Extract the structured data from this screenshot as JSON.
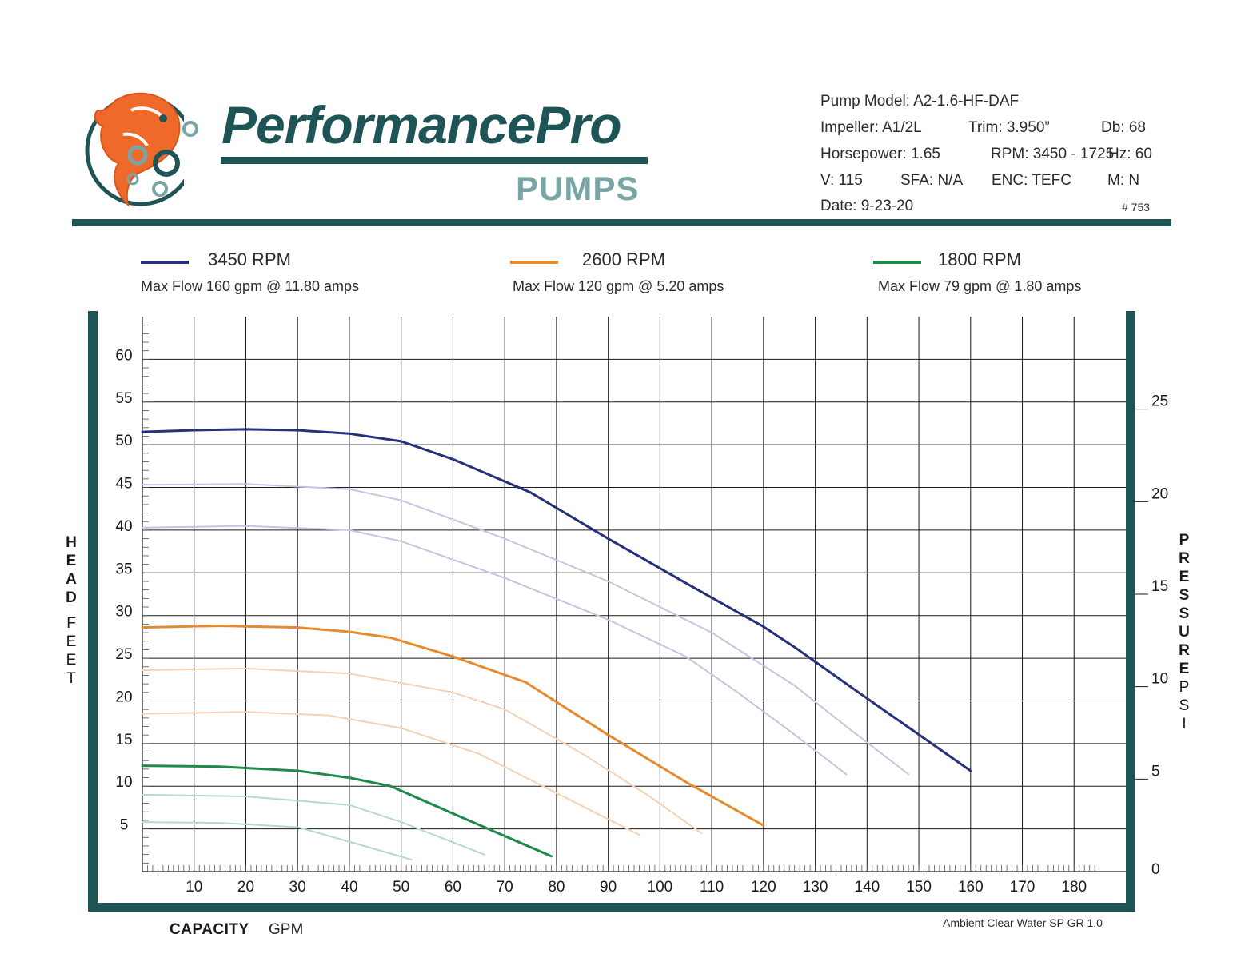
{
  "brand": {
    "name": "PerformancePro",
    "sub": "PUMPS",
    "colors": {
      "teal": "#1f5457",
      "grey_teal": "#7aa5a6",
      "orange": "#ef6a2a"
    }
  },
  "specs": {
    "model": "Pump Model:  A2-1.6-HF-DAF",
    "impeller": "Impeller:   A1/2L",
    "trim": "Trim:  3.950”",
    "db": "Db:  68",
    "horsepower": "Horsepower:   1.65",
    "rpm": "RPM:  3450 - 1725",
    "hz": "Hz: 60",
    "v": "V:   115",
    "sfa": "SFA: N/A",
    "enc": "ENC:  TEFC",
    "m": "M:   N",
    "date": "Date:   9-23-20",
    "number": "# 753"
  },
  "legend": [
    {
      "label": "3450 RPM",
      "note": "Max Flow 160 gpm @ 11.80 amps",
      "color": "#27307a"
    },
    {
      "label": "2600 RPM",
      "note": "Max Flow 120 gpm @ 5.20 amps",
      "color": "#e68a2e"
    },
    {
      "label": "1800 RPM",
      "note": "Max Flow 79 gpm @ 1.80 amps",
      "color": "#1e8a4a"
    }
  ],
  "axis_labels": {
    "head_bold": "HEAD",
    "head_unit": "FEET",
    "pressure_bold": "PRESSURE",
    "pressure_unit": "PSI",
    "capacity_bold": "CAPACITY",
    "capacity_unit": "GPM"
  },
  "footnote": "Ambient Clear Water SP GR 1.0",
  "chart_data": {
    "type": "line",
    "title": "",
    "xlabel": "CAPACITY GPM",
    "ylabel": "HEAD FEET",
    "y2label": "PRESSURE PSI",
    "xlim": [
      0,
      190
    ],
    "ylim": [
      0,
      65
    ],
    "y2lim": [
      0,
      30
    ],
    "x_ticks": [
      10,
      20,
      30,
      40,
      50,
      60,
      70,
      80,
      90,
      100,
      110,
      120,
      130,
      140,
      150,
      160,
      170,
      180
    ],
    "y_ticks": [
      5,
      10,
      15,
      20,
      25,
      30,
      35,
      40,
      45,
      50,
      55,
      60
    ],
    "y2_ticks": [
      0,
      5,
      10,
      15,
      20,
      25
    ],
    "grid": true,
    "series": [
      {
        "name": "3450 RPM",
        "color": "#27307a",
        "width": 3,
        "x": [
          0,
          10,
          20,
          30,
          40,
          50,
          60,
          75,
          90,
          105,
          120,
          126,
          140,
          160
        ],
        "y": [
          51.5,
          51.7,
          51.8,
          51.7,
          51.3,
          50.4,
          48.3,
          44.4,
          39.0,
          33.8,
          28.7,
          26.3,
          20.3,
          11.8
        ]
      },
      {
        "name": "",
        "color": "#c9c3e0",
        "width": 2,
        "x": [
          0,
          20,
          40,
          50,
          70,
          90,
          110,
          126,
          136,
          148
        ],
        "y": [
          45.3,
          45.4,
          44.8,
          43.5,
          39.0,
          34.0,
          28.0,
          21.8,
          17.0,
          11.4
        ]
      },
      {
        "name": "",
        "color": "#c9c3e0",
        "width": 2,
        "x": [
          0,
          20,
          40,
          50,
          70,
          90,
          105,
          115,
          125,
          136
        ],
        "y": [
          40.3,
          40.5,
          40.0,
          38.7,
          34.4,
          29.5,
          25.2,
          21.0,
          16.5,
          11.4
        ]
      },
      {
        "name": "2600 RPM",
        "color": "#e68a2e",
        "width": 3,
        "x": [
          0,
          15,
          30,
          40,
          48,
          60,
          74,
          90,
          105,
          120
        ],
        "y": [
          28.6,
          28.8,
          28.6,
          28.1,
          27.4,
          25.2,
          22.2,
          16.0,
          10.5,
          5.4
        ]
      },
      {
        "name": "",
        "color": "#f5d2b4",
        "width": 2,
        "x": [
          0,
          20,
          40,
          60,
          70,
          85,
          98,
          108
        ],
        "y": [
          23.6,
          23.8,
          23.2,
          21.0,
          19.0,
          13.8,
          8.8,
          4.5
        ]
      },
      {
        "name": "",
        "color": "#f5d2b4",
        "width": 2,
        "x": [
          0,
          20,
          36,
          50,
          65,
          80,
          96
        ],
        "y": [
          18.5,
          18.7,
          18.3,
          16.8,
          13.8,
          9.2,
          4.3
        ]
      },
      {
        "name": "1800 RPM",
        "color": "#1e8a4a",
        "width": 3,
        "x": [
          0,
          15,
          30,
          40,
          48,
          60,
          79
        ],
        "y": [
          12.4,
          12.3,
          11.8,
          11.0,
          10.0,
          6.8,
          1.8
        ]
      },
      {
        "name": "",
        "color": "#b5dcc3",
        "width": 2,
        "x": [
          0,
          20,
          40,
          50,
          66
        ],
        "y": [
          9.0,
          8.8,
          7.8,
          5.8,
          2.0
        ]
      },
      {
        "name": "",
        "color": "#b5dcc3",
        "width": 2,
        "x": [
          0,
          15,
          30,
          40,
          52
        ],
        "y": [
          5.8,
          5.7,
          5.2,
          3.5,
          1.4
        ]
      }
    ]
  }
}
